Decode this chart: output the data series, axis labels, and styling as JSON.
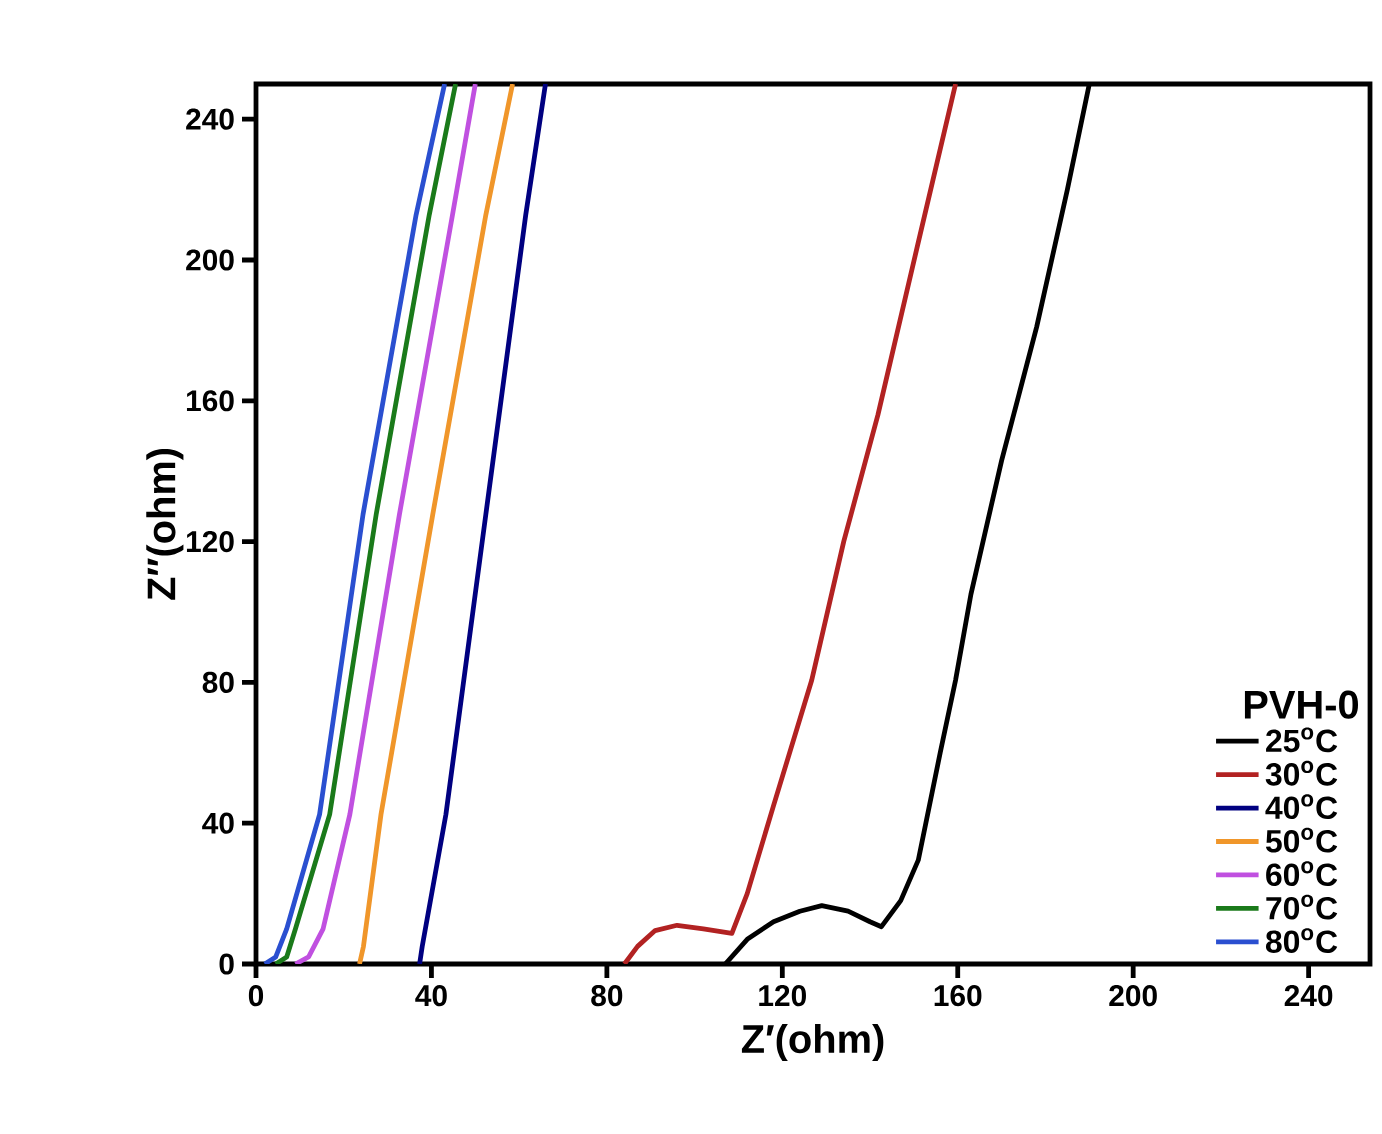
{
  "chart_data": {
    "type": "line",
    "xlabel": "Z′(ohm)",
    "ylabel": "Z″(ohm)",
    "legend_title": "PVH-0",
    "xlim": [
      0,
      254
    ],
    "ylim": [
      0,
      250
    ],
    "xticks": [
      0,
      40,
      80,
      120,
      160,
      200,
      240
    ],
    "yticks": [
      0,
      40,
      80,
      120,
      160,
      200,
      240
    ],
    "grid": false,
    "legend": "bottom right",
    "marker": "none",
    "line_style": "solid",
    "series": [
      {
        "name": "25$^{o}$C",
        "color": "#000000",
        "x": [
          107,
          112,
          118,
          124,
          129,
          135,
          140,
          142.6,
          147,
          151,
          156,
          159.5,
          163,
          170,
          178,
          185,
          190
        ],
        "values": [
          0,
          7,
          12,
          15,
          16.6,
          15,
          12,
          10.6,
          18,
          29.5,
          60,
          80.6,
          105,
          143,
          181,
          220,
          250
        ]
      },
      {
        "name": "30$^{o}$C",
        "color": "#b22222",
        "x": [
          84,
          87,
          91,
          96,
          102,
          108.5,
          112,
          118,
          126.7,
          134,
          141.8,
          151,
          159.5
        ],
        "values": [
          0,
          5,
          9.5,
          11,
          10,
          8.7,
          20,
          45,
          80.6,
          120,
          156,
          205,
          250
        ]
      },
      {
        "name": "40$^{o}$C",
        "color": "#000080",
        "x": [
          37.3,
          37.9,
          43.3,
          52.4,
          61.5,
          66
        ],
        "values": [
          0,
          5,
          42.5,
          127.7,
          212.8,
          250
        ]
      },
      {
        "name": "50$^{o}$C",
        "color": "#f0962a",
        "x": [
          23.6,
          24.5,
          28.5,
          40.3,
          52.4,
          58.5
        ],
        "values": [
          0,
          5,
          42.5,
          127.7,
          212.8,
          250
        ]
      },
      {
        "name": "60$^{o}$C",
        "color": "#c050e0",
        "x": [
          9,
          12,
          15.3,
          21.4,
          32.7,
          44.8,
          50
        ],
        "values": [
          0,
          2,
          10,
          42.5,
          127.7,
          212.8,
          250
        ]
      },
      {
        "name": "70$^{o}$C",
        "color": "#1a7a1a",
        "x": [
          4.5,
          7,
          9,
          16.8,
          27.4,
          39.5,
          45.5
        ],
        "values": [
          0,
          2,
          10,
          42.5,
          127.7,
          212.8,
          250
        ]
      },
      {
        "name": "80$^{o}$C",
        "color": "#2a4fd0",
        "x": [
          2,
          4.5,
          7,
          14.5,
          24.4,
          36.5,
          43
        ],
        "values": [
          0,
          2,
          10,
          42.5,
          127.7,
          212.8,
          250
        ]
      }
    ]
  }
}
